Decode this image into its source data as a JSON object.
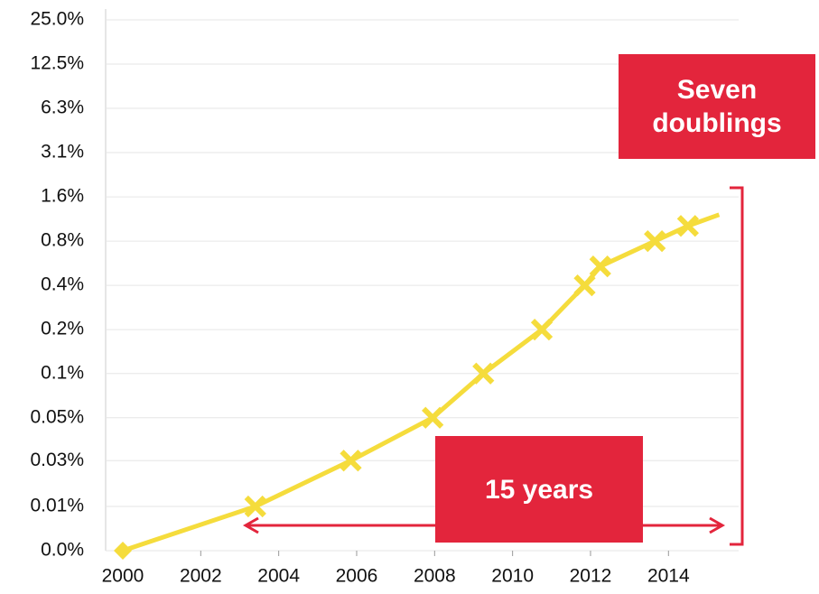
{
  "chart_data": {
    "type": "line",
    "log_y": true,
    "grid": true,
    "x": [
      2000,
      2003.4,
      2005.85,
      2007.95,
      2009.25,
      2010.75,
      2011.85,
      2012.25,
      2013.65,
      2014.5,
      2015.3
    ],
    "series": [
      {
        "color": "#f5dc3c",
        "values": [
          0.0061,
          0.0122,
          0.025,
          0.049,
          0.098,
          0.195,
          0.39,
          0.525,
          0.78,
          0.99,
          1.18
        ]
      }
    ],
    "xlim": [
      1999.56,
      2015.8
    ],
    "xticks": [
      2000,
      2002,
      2004,
      2006,
      2008,
      2010,
      2012,
      2014
    ],
    "ylim": [
      0.0061,
      25
    ],
    "yticks": [
      {
        "value": 0.0061,
        "label": "0.0%"
      },
      {
        "value": 0.0122,
        "label": "0.01%"
      },
      {
        "value": 0.025,
        "label": "0.03%"
      },
      {
        "value": 0.049,
        "label": "0.05%"
      },
      {
        "value": 0.098,
        "label": "0.1%"
      },
      {
        "value": 0.195,
        "label": "0.2%"
      },
      {
        "value": 0.39,
        "label": "0.4%"
      },
      {
        "value": 0.78,
        "label": "0.8%"
      },
      {
        "value": 1.56,
        "label": "1.6%"
      },
      {
        "value": 3.125,
        "label": "3.1%"
      },
      {
        "value": 6.25,
        "label": "6.3%"
      },
      {
        "value": 12.5,
        "label": "12.5%"
      },
      {
        "value": 25,
        "label": "25.0%"
      }
    ],
    "annotations": [
      "Seven doublings",
      "15 years"
    ]
  }
}
